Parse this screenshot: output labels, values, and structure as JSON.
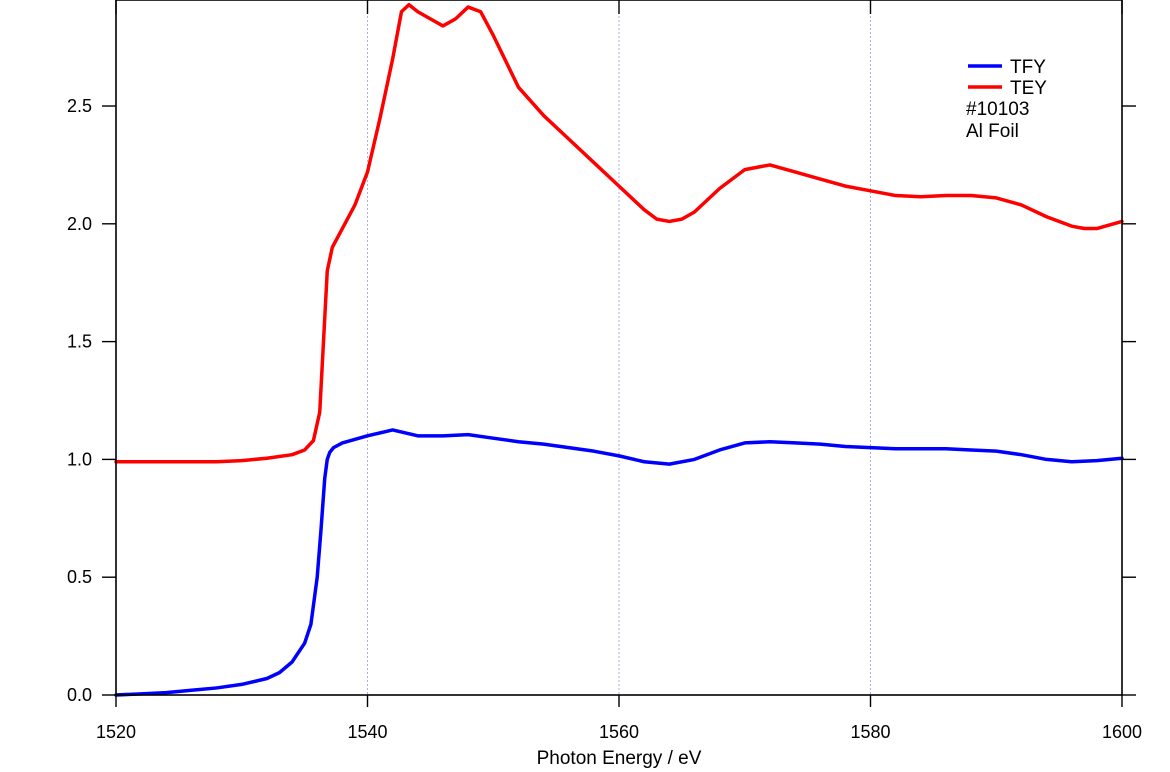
{
  "chart_data": {
    "type": "line",
    "xlabel": "Photon Energy / eV",
    "ylabel": "",
    "xlim": [
      1520,
      1600
    ],
    "ylim": [
      0.0,
      2.95
    ],
    "grid": {
      "x": true,
      "y": false
    },
    "x_ticks": [
      1520,
      1540,
      1560,
      1580,
      1600
    ],
    "y_ticks": [
      0.0,
      0.5,
      1.0,
      1.5,
      2.0,
      2.5
    ],
    "x_tick_labels": [
      "1520",
      "1540",
      "1560",
      "1580",
      "1600"
    ],
    "y_tick_labels": [
      "0.0",
      "0.5",
      "1.0",
      "1.5",
      "2.0",
      "2.5"
    ],
    "legend_position": "top-right",
    "annotations": [
      "#10103",
      "Al Foil"
    ],
    "series": [
      {
        "name": "TFY",
        "color": "#0000ff",
        "x": [
          1520,
          1522,
          1524,
          1526,
          1528,
          1530,
          1532,
          1533,
          1534,
          1535,
          1535.5,
          1536,
          1536.3,
          1536.6,
          1536.8,
          1537,
          1537.3,
          1538,
          1540,
          1542,
          1544,
          1546,
          1548,
          1550,
          1552,
          1554,
          1556,
          1558,
          1560,
          1562,
          1564,
          1566,
          1568,
          1570,
          1572,
          1574,
          1576,
          1578,
          1580,
          1582,
          1584,
          1586,
          1588,
          1590,
          1592,
          1594,
          1596,
          1598,
          1600
        ],
        "y": [
          0.0,
          0.005,
          0.01,
          0.02,
          0.03,
          0.045,
          0.07,
          0.095,
          0.14,
          0.22,
          0.3,
          0.5,
          0.7,
          0.92,
          1.0,
          1.03,
          1.05,
          1.07,
          1.1,
          1.125,
          1.1,
          1.1,
          1.105,
          1.09,
          1.075,
          1.065,
          1.05,
          1.035,
          1.015,
          0.99,
          0.98,
          1.0,
          1.04,
          1.07,
          1.075,
          1.07,
          1.065,
          1.055,
          1.05,
          1.045,
          1.045,
          1.045,
          1.04,
          1.035,
          1.02,
          1.0,
          0.99,
          0.995,
          1.005
        ]
      },
      {
        "name": "TEY",
        "color": "#ff0000",
        "x": [
          1520,
          1524,
          1528,
          1530,
          1532,
          1534,
          1535,
          1535.7,
          1536.2,
          1536.5,
          1536.8,
          1537.2,
          1538,
          1539,
          1540,
          1541,
          1542,
          1542.7,
          1543.3,
          1544,
          1545,
          1546,
          1547,
          1548,
          1549,
          1550,
          1552,
          1554,
          1556,
          1558,
          1560,
          1562,
          1563,
          1564,
          1565,
          1566,
          1568,
          1570,
          1572,
          1574,
          1576,
          1578,
          1580,
          1582,
          1584,
          1586,
          1588,
          1590,
          1592,
          1594,
          1596,
          1597,
          1598,
          1600
        ],
        "y": [
          0.99,
          0.99,
          0.99,
          0.995,
          1.005,
          1.02,
          1.04,
          1.08,
          1.2,
          1.5,
          1.8,
          1.9,
          1.98,
          2.08,
          2.22,
          2.45,
          2.7,
          2.9,
          2.93,
          2.9,
          2.87,
          2.84,
          2.87,
          2.92,
          2.9,
          2.8,
          2.58,
          2.46,
          2.36,
          2.26,
          2.16,
          2.06,
          2.02,
          2.01,
          2.02,
          2.05,
          2.15,
          2.23,
          2.25,
          2.22,
          2.19,
          2.16,
          2.14,
          2.12,
          2.115,
          2.12,
          2.12,
          2.11,
          2.08,
          2.03,
          1.99,
          1.98,
          1.98,
          2.01
        ]
      }
    ]
  }
}
